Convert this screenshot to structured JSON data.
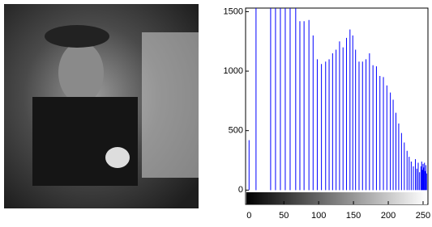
{
  "chart_data": {
    "type": "stem",
    "color": "#0000ff",
    "x": [
      0,
      10,
      31,
      38,
      45,
      52,
      59,
      67,
      73,
      79,
      86,
      92,
      98,
      104,
      110,
      115,
      120,
      125,
      130,
      135,
      140,
      145,
      149,
      153,
      158,
      163,
      168,
      173,
      178,
      183,
      188,
      193,
      198,
      203,
      207,
      211,
      215,
      219,
      223,
      227,
      230,
      233,
      236,
      239,
      241,
      243,
      245,
      247,
      248,
      249,
      250,
      251,
      252,
      253,
      254,
      255
    ],
    "values": [
      420,
      1530,
      1530,
      1530,
      1530,
      1530,
      1530,
      1530,
      1420,
      1420,
      1430,
      1300,
      1100,
      1060,
      1080,
      1100,
      1150,
      1180,
      1250,
      1200,
      1280,
      1350,
      1300,
      1180,
      1080,
      1080,
      1100,
      1150,
      1050,
      1040,
      960,
      950,
      880,
      820,
      760,
      650,
      560,
      480,
      400,
      330,
      280,
      240,
      200,
      260,
      180,
      230,
      150,
      200,
      240,
      170,
      220,
      190,
      230,
      160,
      210,
      140
    ],
    "xlim": [
      -5,
      257
    ],
    "ylim": [
      -120,
      1530
    ],
    "xticks": [
      0,
      50,
      100,
      150,
      200,
      250
    ],
    "yticks": [
      0,
      500,
      1000,
      1500
    ]
  }
}
